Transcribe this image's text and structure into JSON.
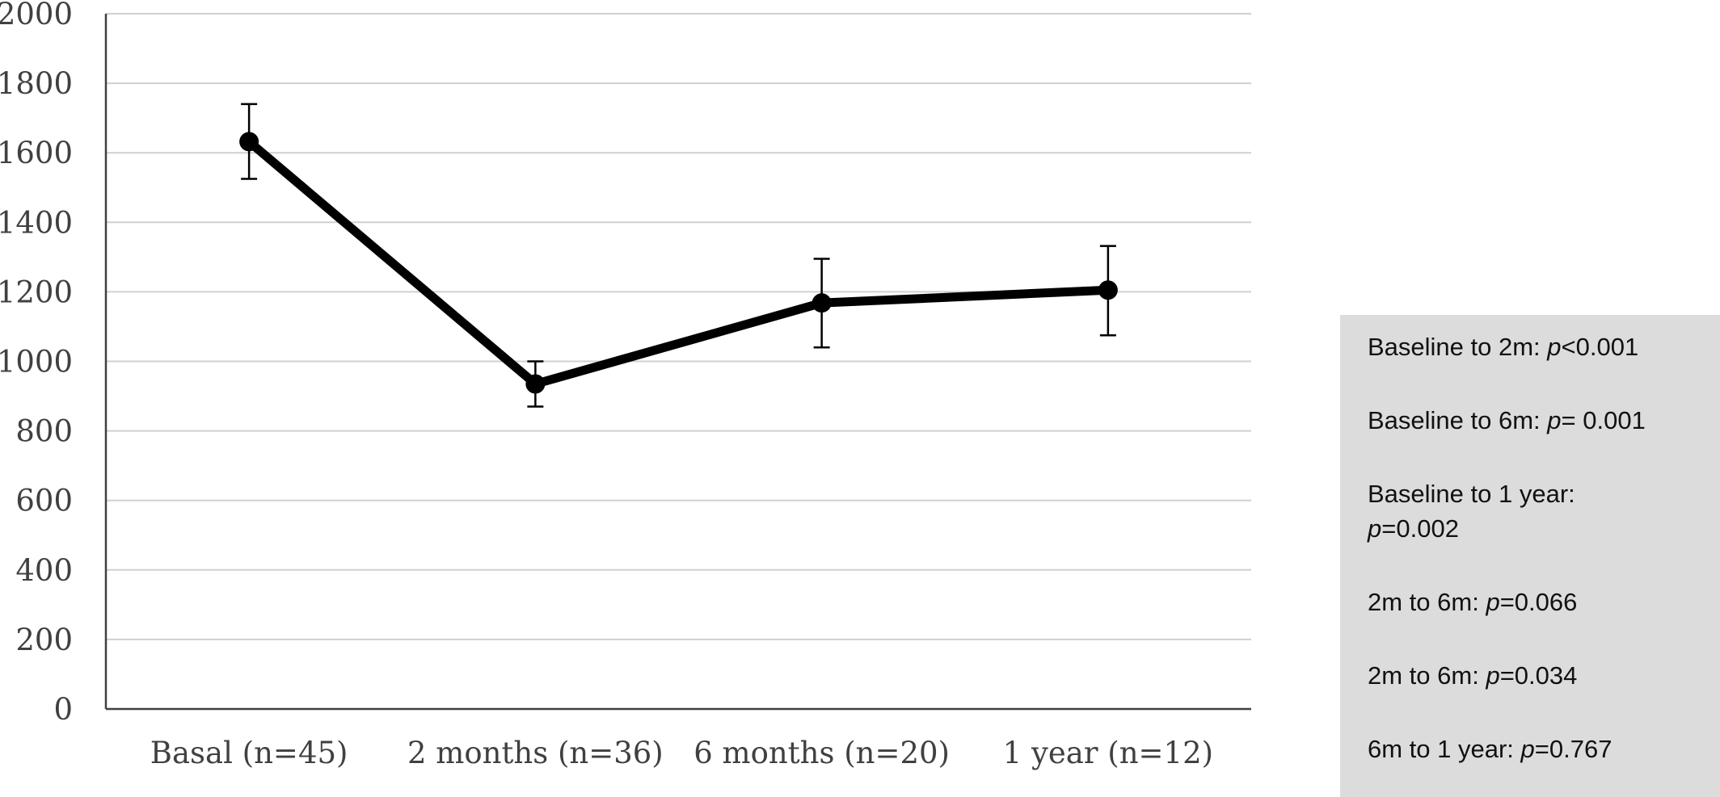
{
  "chart_data": {
    "type": "line",
    "categories": [
      "Basal (n=45)",
      "2 months (n=36)",
      "6 months (n=20)",
      "1 year (n=12)"
    ],
    "series": [
      {
        "values": [
          1632,
          935,
          1168,
          1205
        ],
        "error_upper": [
          1740,
          1000,
          1295,
          1332
        ],
        "error_lower": [
          1525,
          870,
          1040,
          1075
        ]
      }
    ],
    "ylim": [
      0,
      2000
    ],
    "yticks": [
      0,
      200,
      400,
      600,
      800,
      1000,
      1200,
      1400,
      1600,
      1800,
      2000
    ],
    "ytick_labels": [
      "0",
      "200",
      "400",
      "600",
      "800",
      "1000",
      "1200",
      "1400",
      "1600",
      "1800",
      "2000"
    ],
    "grid": true,
    "line_color": "#000000",
    "grid_color": "#d0d0d0",
    "axis_color": "#404040"
  },
  "stats_box": {
    "background": "#dcdcdc",
    "items": [
      {
        "prefix": "Baseline to 2m: ",
        "p": "p",
        "suffix": "<0.001"
      },
      {
        "prefix": "Baseline to 6m: ",
        "p": "p",
        "suffix": "= 0.001"
      },
      {
        "prefix": "Baseline to 1 year: ",
        "p": "p",
        "suffix": "=0.002"
      },
      {
        "prefix": "2m to 6m: ",
        "p": "p",
        "suffix": "=0.066"
      },
      {
        "prefix": "2m to 6m: ",
        "p": "p",
        "suffix": "=0.034"
      },
      {
        "prefix": "6m to 1 year: ",
        "p": "p",
        "suffix": "=0.767"
      }
    ]
  }
}
